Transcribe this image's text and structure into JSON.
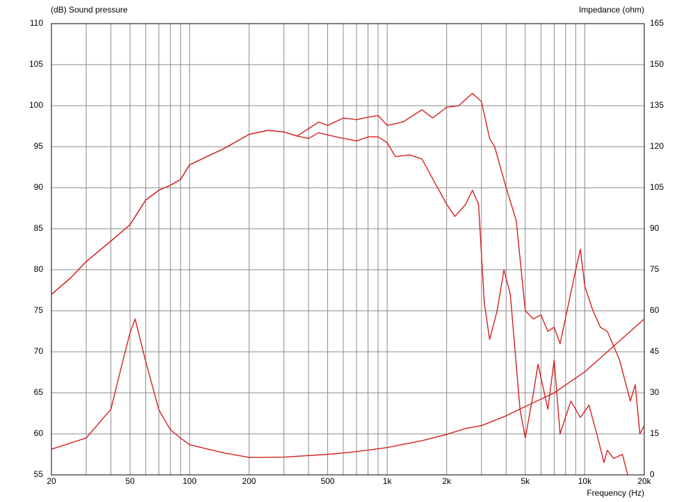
{
  "chart_data": {
    "type": "line",
    "y_label": "(dB)  Sound pressure",
    "y2_label": "Impedance  (ohm)",
    "x_label": "Frequency  (Hz)",
    "xscale": "log",
    "xlim": [
      20,
      20000
    ],
    "xticks": [
      20,
      50,
      100,
      200,
      500,
      {
        "value": 1000,
        "label": "1k"
      },
      {
        "value": 2000,
        "label": "2k"
      },
      {
        "value": 5000,
        "label": "5k"
      },
      {
        "value": 10000,
        "label": "10k"
      },
      {
        "value": 20000,
        "label": "20k"
      }
    ],
    "xminor": [
      30,
      40,
      60,
      70,
      80,
      90,
      300,
      400,
      600,
      700,
      800,
      900,
      3000,
      4000,
      6000,
      7000,
      8000,
      9000
    ],
    "ylim": [
      55,
      110
    ],
    "yticks": [
      55,
      60,
      65,
      70,
      75,
      80,
      85,
      90,
      95,
      100,
      105,
      110
    ],
    "y2lim": [
      0,
      165
    ],
    "y2ticks": [
      0,
      15,
      30,
      45,
      60,
      75,
      90,
      105,
      120,
      135,
      150,
      165
    ],
    "grid": true,
    "series": [
      {
        "color": "#d42020",
        "x": [
          20,
          25,
          30,
          40,
          50,
          60,
          70,
          80,
          90,
          100,
          150,
          200,
          250,
          300,
          350,
          450,
          500,
          600,
          700,
          800,
          900,
          1000,
          1200,
          1500,
          1700,
          2000,
          2300,
          2700,
          3000,
          3300,
          3500,
          4000,
          4500,
          5000,
          5500,
          6000,
          6500,
          7000,
          7500,
          9000,
          9500,
          10000,
          11000,
          12000,
          13000,
          15000,
          17000,
          18000,
          19000,
          20000
        ],
        "values": [
          77,
          79,
          81,
          83.5,
          85.5,
          88.5,
          89.7,
          90.3,
          91,
          92.8,
          94.8,
          96.5,
          97,
          96.8,
          96.3,
          98,
          97.6,
          98.5,
          98.3,
          98.6,
          98.8,
          97.6,
          98,
          99.5,
          98.5,
          99.8,
          100,
          101.5,
          100.5,
          96,
          95,
          90,
          86,
          75,
          74,
          74.5,
          72.5,
          73,
          71,
          80,
          82.5,
          78,
          75,
          73,
          72.5,
          69,
          64,
          66,
          60,
          61
        ]
      },
      {
        "color": "#d42020",
        "x": [
          20,
          25,
          30,
          40,
          50,
          60,
          70,
          80,
          90,
          100,
          150,
          200,
          250,
          300,
          350,
          400,
          450,
          550,
          700,
          800,
          900,
          1000,
          1100,
          1300,
          1500,
          1800,
          2000,
          2200,
          2500,
          2700,
          2900,
          3100,
          3300,
          3600,
          3900,
          4200,
          4700,
          5000,
          5500,
          5800,
          6500,
          7000,
          7500,
          8500,
          9500,
          10500,
          11500,
          12500,
          13000,
          14000,
          15500,
          16500
        ],
        "values": [
          77,
          79,
          81,
          83.5,
          85.5,
          88.5,
          89.7,
          90.3,
          91,
          92.8,
          94.8,
          96.5,
          97,
          96.8,
          96.3,
          96,
          96.7,
          96.2,
          95.7,
          96.2,
          96.2,
          95.5,
          93.8,
          94,
          93.5,
          90,
          88,
          86.5,
          88,
          89.7,
          88,
          76,
          71.5,
          75,
          80,
          77,
          63,
          59.5,
          65,
          68.5,
          63,
          69,
          60,
          64,
          62,
          63.5,
          60,
          56.5,
          58,
          57,
          57.5,
          55
        ]
      },
      {
        "color": "#d42020",
        "axis": "y2",
        "x": [
          20,
          30,
          40,
          45,
          50,
          53,
          60,
          70,
          80,
          90,
          100,
          150,
          200,
          300,
          500,
          700,
          1000,
          1500,
          2000,
          2500,
          3000,
          4000,
          5000,
          7000,
          10000,
          15000,
          20000
        ],
        "values": [
          9.4,
          13.5,
          24,
          39,
          52,
          57,
          41.5,
          23.7,
          16.5,
          13.5,
          11,
          8,
          6.4,
          6.5,
          7.5,
          8.5,
          10,
          12.5,
          14.8,
          17,
          18,
          21.6,
          25,
          30,
          37.7,
          49,
          57
        ]
      }
    ]
  }
}
